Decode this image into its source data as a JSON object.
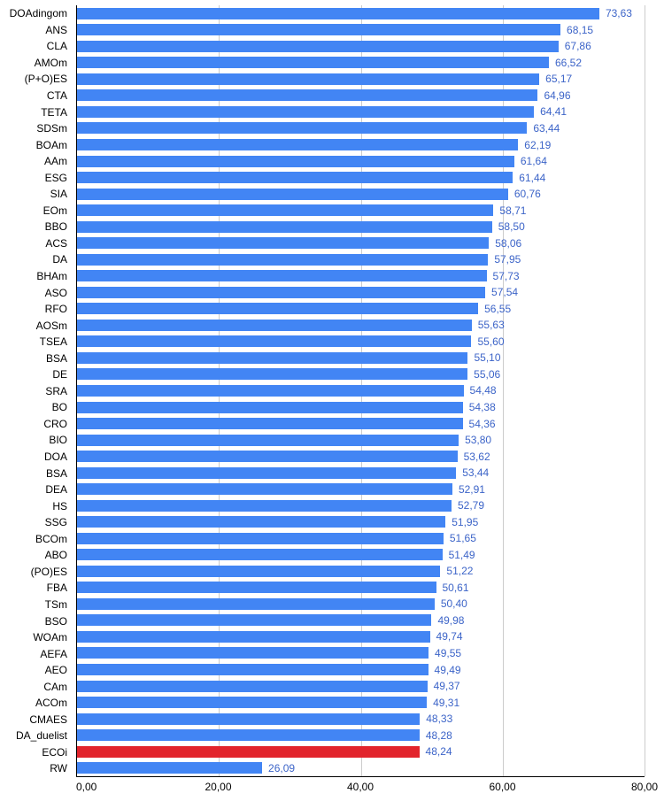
{
  "chart_data": {
    "type": "bar",
    "orientation": "horizontal",
    "title": "",
    "xlabel": "",
    "ylabel": "",
    "xlim": [
      0,
      80
    ],
    "xticks": [
      0,
      20,
      40,
      60,
      80
    ],
    "grid": true,
    "legend": "none",
    "bar_color": "#4285f4",
    "value_label_color": "#3c64c8",
    "gridline_color": "#cccccc",
    "axis_color": "#000000",
    "number_format": "comma-decimal-2",
    "highlight": {
      "index": 45,
      "color": "#e2242c",
      "category": "ECOi"
    },
    "categories": [
      "DOAdingom",
      "ANS",
      "CLA",
      "AMOm",
      "(P+O)ES",
      "CTA",
      "TETA",
      "SDSm",
      "BOAm",
      "AAm",
      "ESG",
      "SIA",
      "EOm",
      "BBO",
      "ACS",
      "DA",
      "BHAm",
      "ASO",
      "RFO",
      "AOSm",
      "TSEA",
      "BSA",
      "DE",
      "SRA",
      "BO",
      "CRO",
      "BIO",
      "DOA",
      "BSA",
      "DEA",
      "HS",
      "SSG",
      "BCOm",
      "ABO",
      "(PO)ES",
      "FBA",
      "TSm",
      "BSO",
      "WOAm",
      "AEFA",
      "AEO",
      "CAm",
      "ACOm",
      "CMAES",
      "DA_duelist",
      "ECOi",
      "RW"
    ],
    "values": [
      73.63,
      68.15,
      67.86,
      66.52,
      65.17,
      64.96,
      64.41,
      63.44,
      62.19,
      61.64,
      61.44,
      60.76,
      58.71,
      58.5,
      58.06,
      57.95,
      57.73,
      57.54,
      56.55,
      55.63,
      55.6,
      55.1,
      55.06,
      54.48,
      54.38,
      54.36,
      53.8,
      53.62,
      53.44,
      52.91,
      52.79,
      51.95,
      51.65,
      51.49,
      51.22,
      50.61,
      50.4,
      49.98,
      49.74,
      49.55,
      49.49,
      49.37,
      49.31,
      48.33,
      48.28,
      48.24,
      26.09
    ]
  }
}
